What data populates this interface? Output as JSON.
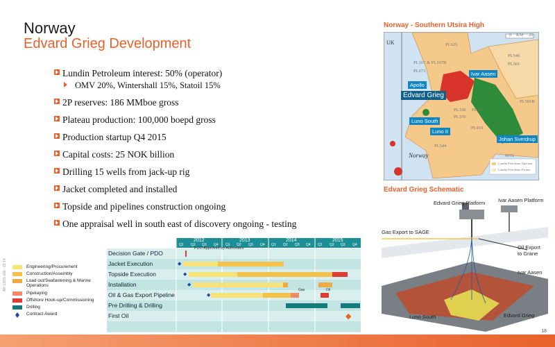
{
  "header": {
    "title": "Norway",
    "subtitle": "Edvard Grieg Development"
  },
  "bullets": [
    "Lundin Petroleum interest: 50% (operator)",
    "2P reserves: 186 MMboe gross",
    "Plateau production: 100,000 boepd gross",
    "Production startup Q4 2015",
    "Capital costs: 25 NOK billion",
    "Drilling 15 wells from jack-up rig",
    "Jacket completed and installed",
    "Topside and pipelines construction ongoing",
    "One appraisal well in south east of discovery ongoing - testing"
  ],
  "sub_bullet": "OMV 20%, Wintershall 15%, Statoil 15%",
  "map": {
    "title": "Norway - Southern Utsira High",
    "scale_labels": [
      "0",
      "KM",
      "20"
    ],
    "labels": [
      "UK",
      "PL625",
      "PL546",
      "PL501",
      "PL167 & PL167B",
      "PL673",
      "PL501B",
      "PL338",
      "PL265",
      "PL359",
      "PL410",
      "PL544",
      "0016",
      "Norway"
    ],
    "fields": [
      "Ivar Aasen",
      "Apollo",
      "Edvard Grieg",
      "Luno South",
      "Luno II",
      "Johan Sverdrup"
    ],
    "legend": [
      "Lundin Petroleum Operator",
      "Lundin Petroleum Partner"
    ]
  },
  "schematic": {
    "title": "Edvard Grieg Schematic",
    "labels": [
      "Edvard Grieg Platform",
      "Ivar Aasen Platform",
      "Gas Export to SAGE",
      "Oil Export to Grane",
      "Ivar Aasen",
      "Luno South",
      "Edvard Grieg"
    ]
  },
  "gantt": {
    "years": [
      "2012",
      "2013",
      "2014",
      "2015"
    ],
    "quarters": [
      "Q1",
      "Q2",
      "Q3",
      "Q4",
      "Q1",
      "Q2",
      "Q3",
      "Q4",
      "Q1",
      "Q2",
      "Q3",
      "Q4",
      "Q1",
      "Q2",
      "Q3",
      "Q4"
    ],
    "rows": [
      "Decision Gate / PDO",
      "Jacket Execution",
      "Topside Execution",
      "Installation",
      "Oil & Gas Export Pipeline",
      "Pre Drilling & Drilling",
      "First Oil"
    ],
    "pdo_note": "PDO Approved by Authorities",
    "gas_label": "Gas",
    "oil_label": "Oil"
  },
  "legend": [
    {
      "label": "Engineering/Procurement",
      "color": "#f7e27a"
    },
    {
      "label": "Construction/Assembly",
      "color": "#f2c24a"
    },
    {
      "label": "Load out/Seafastening & Marine Operations",
      "color": "#eeaa44"
    },
    {
      "label": "Pipelaying",
      "color": "#f08a6a"
    },
    {
      "label": "Offshore Hook-up/Commissioning",
      "color": "#e03a34"
    },
    {
      "label": "Drilling",
      "color": "#157a7a"
    },
    {
      "label": "Contract Award",
      "color": "#1b4aa0"
    }
  ],
  "footer": {
    "page": "18",
    "code": "AR 13/01 p00 - 02-14"
  }
}
